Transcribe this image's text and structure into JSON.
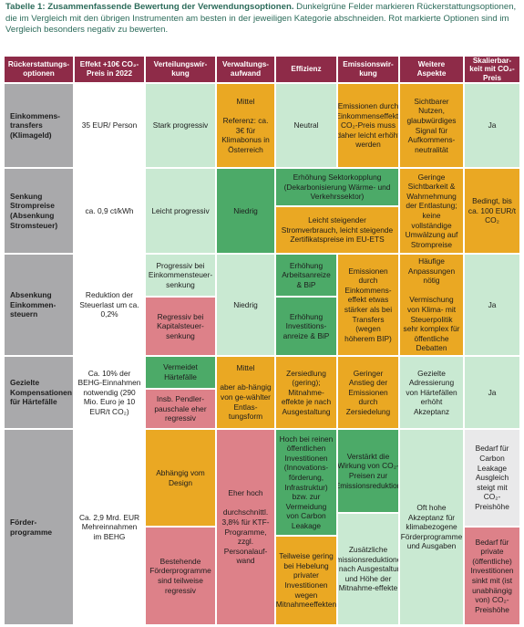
{
  "caption": {
    "title": "Tabelle 1: Zusammenfassende Bewertung der Verwendungsoptionen.",
    "text": "Dunkelgrüne Felder markieren Rückerstattungsoptionen, die im Vergleich mit den übrigen Instrumenten am besten in der jeweiligen Kategorie abschneiden. Rot markierte Optionen sind im Vergleich besonders negativ zu bewerten."
  },
  "headers": {
    "option": "Rückerstattungs-optionen",
    "effect": "Effekt +10€ CO₂-Preis in 2022",
    "distribution": "Verteilungswir-kung",
    "admin": "Verwaltungs-aufwand",
    "efficiency": "Effizienz",
    "emissions": "Emissionswir-kung",
    "aspects": "Weitere Aspekte",
    "scalable": "Skalierbar-keit mit CO₂-Preis"
  },
  "rows": {
    "r1": {
      "label": "Einkommens-transfers (Klimageld)",
      "effect": "35 EUR/ Person",
      "distribution": "Stark progressiv",
      "admin": "Mittel\n\nReferenz: ca. 3€ für Klimabonus in Österreich",
      "efficiency": "Neutral",
      "emissions": "Emissionen durch Einkommenseffekt. CO₂-Preis muss daher leicht erhöht werden",
      "aspects": "Sichtbarer Nutzen, glaubwürdiges Signal für Aufkommens-neutralität",
      "scalable": "Ja"
    },
    "r2": {
      "label": "Senkung Strompreise (Absenkung Stromsteuer)",
      "effect": "ca. 0,9 ct/kWh",
      "distribution": "Leicht progressiv",
      "admin": "Niedrig",
      "efficiency_emissions_a": "Erhöhung Sektorkopplung (Dekarbonisierung Wärme- und Verkehrssektor)",
      "efficiency_emissions_b": "Leicht steigender Stromverbrauch, leicht steigende Zertifikatspreise im EU-ETS",
      "aspects": "Geringe Sichtbarkeit & Wahrnehmung der Entlastung; keine vollständige Umwälzung auf Strompreise",
      "scalable": "Bedingt, bis ca. 100 EUR/t CO₂"
    },
    "r3": {
      "label": "Absenkung Einkommen-steuern",
      "effect": "Reduktion der Steuerlast um ca. 0,2%",
      "distribution_a": "Progressiv bei Einkommensteuer-senkung",
      "distribution_b": "Regressiv bei Kapitalsteuer-senkung",
      "admin": "Niedrig",
      "efficiency_a": "Erhöhung Arbeitsanreize & BiP",
      "efficiency_b": "Erhöhung Investitions-anreize & BiP",
      "emissions": "Emissionen durch Einkommens-effekt etwas stärker als bei Transfers (wegen höherem BIP)",
      "aspects": "Häufige Anpassungen nötig\n\nVermischung von Klima- mit Steuerpolitik sehr komplex für öffentliche Debatten",
      "scalable": "Ja"
    },
    "r4": {
      "label": "Gezielte Kompensationen für Härtefälle",
      "effect": "Ca. 10% der BEHG-Einnahmen notwendig (290 Mio. Euro je 10 EUR/t CO₂)",
      "distribution_a": "Vermeidet Härtefälle",
      "distribution_b": "Insb. Pendler-pauschale eher regressiv",
      "admin": "Mittel\n\naber ab-hängig von ge-wählter Entlas-tungsform",
      "efficiency": "Zersiedlung (gering); Mitnahme-effekte je nach Ausgestaltung",
      "emissions": "Geringer Anstieg der Emissionen durch Zersiedelung",
      "aspects": "Gezielte Adressierung von Härtefällen erhöht Akzeptanz",
      "scalable": "Ja"
    },
    "r5": {
      "label": "Förder-programme",
      "effect": "Ca. 2,9 Mrd. EUR Mehreinnahmen im BEHG",
      "distribution_a": "Abhängig vom Design",
      "distribution_b": "Bestehende Förderprogramme sind teilweise regressiv",
      "admin": "Eher hoch\n\ndurchschnittl. 3,8% für KTF-Programme, zzgl. Personalauf-wand",
      "efficiency_a": "Hoch bei reinen öffentlichen Investitionen (Innovations-förderung, Infrastruktur) bzw. zur Vermeidung von Carbon Leakage",
      "efficiency_b": "Teilweise gering bei Hebelung privater Investitionen wegen Mitnahmeeffekten",
      "emissions_a": "Verstärkt die Wirkung von CO₂-Preisen zur Emissionsreduktion",
      "emissions_b": "Zusätzliche Emissionsreduktionen je nach Ausgestaltung und Höhe der Mitnahme-effekte",
      "aspects": "Oft hohe Akzeptanz für klimabezogene Förderprogramme und Ausgaben",
      "scalable_a": "Bedarf für Carbon Leakage Ausgleich steigt mit CO₂-Preishöhe",
      "scalable_b": "Bedarf für private (öffentliche) Investitionen sinkt mit (ist unabhängig von) CO₂-Preishöhe"
    }
  }
}
